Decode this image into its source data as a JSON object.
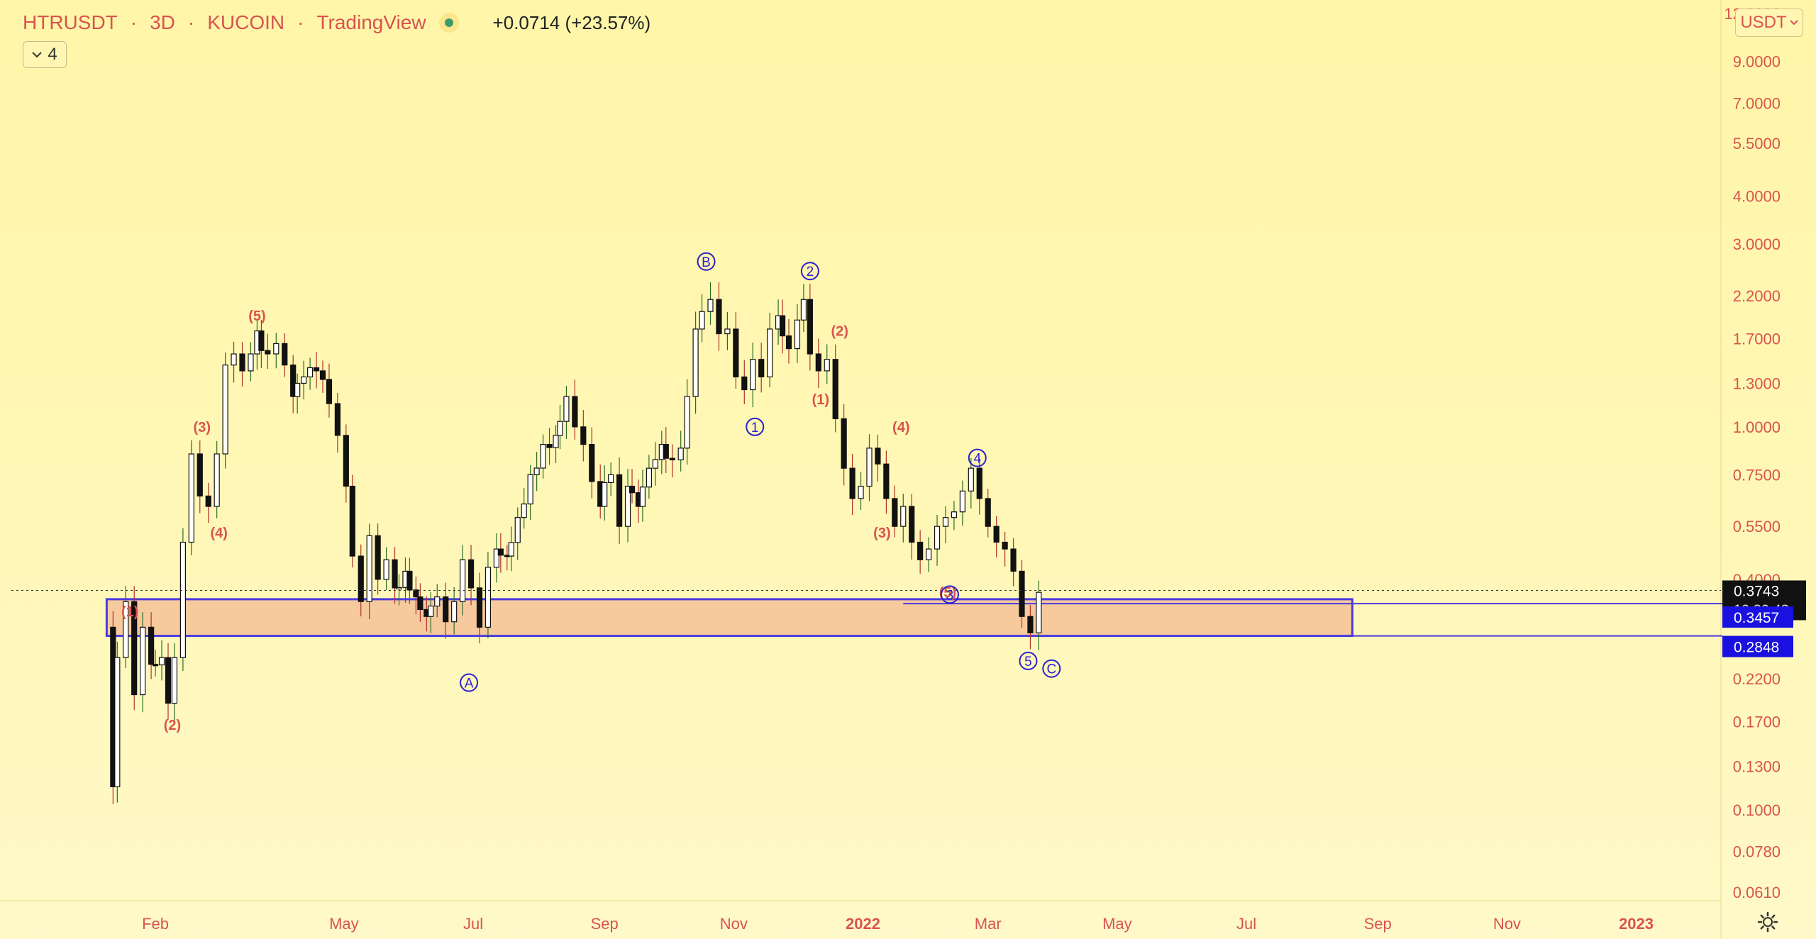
{
  "header": {
    "symbol": "HTRUSDT",
    "interval": "3D",
    "exchange": "KUCOIN",
    "source": "TradingView",
    "sep1": "·",
    "sep2": "·",
    "sep3": "·",
    "change": "+0.0714 (+23.57%)",
    "indicator_count": "4",
    "currency": "USDT"
  },
  "colors": {
    "accent": "#d9534f",
    "wave": "#2c1fd1",
    "zone_fill": "#f5c49a",
    "zone_stroke": "#4b3be0",
    "price_tag": "#111111",
    "level_tag": "#1a10e0"
  },
  "icons": {
    "legend_toggle": "chevron-down-icon",
    "currency_menu": "chevron-down-icon",
    "settings": "gear-icon"
  },
  "chart_data": {
    "type": "candlestick",
    "symbol": "HTRUSDT",
    "interval": "3D",
    "scale": "log",
    "y_ticks": [
      "12.0000",
      "9.0000",
      "7.0000",
      "5.5000",
      "4.0000",
      "3.0000",
      "2.2000",
      "1.7000",
      "1.3000",
      "1.0000",
      "0.7500",
      "0.5500",
      "0.4000",
      "0.2200",
      "0.1700",
      "0.1300",
      "0.1000",
      "0.0780",
      "0.0610"
    ],
    "x_ticks": [
      "Feb",
      "May",
      "Jul",
      "Sep",
      "Nov",
      "2022",
      "Mar",
      "May",
      "Jul",
      "Sep",
      "Nov",
      "2023"
    ],
    "x_tick_dates": [
      "2021-02-01",
      "2021-05-01",
      "2021-07-01",
      "2021-09-01",
      "2021-11-01",
      "2022-01-01",
      "2022-03-01",
      "2022-05-01",
      "2022-07-01",
      "2022-09-01",
      "2022-11-01",
      "2023-01-01"
    ],
    "ylim": [
      0.058,
      13.0
    ],
    "xlim": [
      "2020-11-25",
      "2023-02-10"
    ],
    "last_price": {
      "value": 0.3743,
      "label": "0.3743",
      "countdown": "19:30:43"
    },
    "levels": [
      {
        "value": 0.3457,
        "label": "0.3457"
      },
      {
        "value": 0.2848,
        "label": "0.2848"
      }
    ],
    "zone": {
      "x_start": "2021-01-09",
      "x_end": "2022-08-20",
      "y_top": 0.355,
      "y_bottom": 0.2848
    },
    "path": [
      [
        "2021-01-10",
        0.3
      ],
      [
        "2021-01-12",
        0.115
      ],
      [
        "2021-01-14",
        0.25
      ],
      [
        "2021-01-18",
        0.35
      ],
      [
        "2021-01-22",
        0.2
      ],
      [
        "2021-01-26",
        0.3
      ],
      [
        "2021-01-30",
        0.24
      ],
      [
        "2021-02-04",
        0.25
      ],
      [
        "2021-02-07",
        0.19
      ],
      [
        "2021-02-10",
        0.25
      ],
      [
        "2021-02-14",
        0.5
      ],
      [
        "2021-02-18",
        0.85
      ],
      [
        "2021-02-22",
        0.66
      ],
      [
        "2021-02-26",
        0.62
      ],
      [
        "2021-03-02",
        0.85
      ],
      [
        "2021-03-06",
        1.45
      ],
      [
        "2021-03-10",
        1.55
      ],
      [
        "2021-03-14",
        1.4
      ],
      [
        "2021-03-18",
        1.55
      ],
      [
        "2021-03-21",
        1.78
      ],
      [
        "2021-03-26",
        1.55
      ],
      [
        "2021-03-30",
        1.65
      ],
      [
        "2021-04-03",
        1.45
      ],
      [
        "2021-04-07",
        1.2
      ],
      [
        "2021-04-12",
        1.35
      ],
      [
        "2021-04-18",
        1.4
      ],
      [
        "2021-04-24",
        1.15
      ],
      [
        "2021-04-28",
        0.95
      ],
      [
        "2021-05-02",
        0.7
      ],
      [
        "2021-05-05",
        0.46
      ],
      [
        "2021-05-09",
        0.35
      ],
      [
        "2021-05-13",
        0.52
      ],
      [
        "2021-05-17",
        0.4
      ],
      [
        "2021-05-21",
        0.45
      ],
      [
        "2021-05-25",
        0.38
      ],
      [
        "2021-05-30",
        0.42
      ],
      [
        "2021-06-04",
        0.36
      ],
      [
        "2021-06-09",
        0.32
      ],
      [
        "2021-06-14",
        0.36
      ],
      [
        "2021-06-18",
        0.31
      ],
      [
        "2021-06-22",
        0.35
      ],
      [
        "2021-06-26",
        0.45
      ],
      [
        "2021-06-30",
        0.38
      ],
      [
        "2021-07-04",
        0.3
      ],
      [
        "2021-07-08",
        0.43
      ],
      [
        "2021-07-12",
        0.48
      ],
      [
        "2021-07-17",
        0.46
      ],
      [
        "2021-07-22",
        0.58
      ],
      [
        "2021-07-28",
        0.75
      ],
      [
        "2021-08-03",
        0.9
      ],
      [
        "2021-08-09",
        0.95
      ],
      [
        "2021-08-14",
        1.2
      ],
      [
        "2021-08-18",
        1.0
      ],
      [
        "2021-08-22",
        0.9
      ],
      [
        "2021-08-26",
        0.72
      ],
      [
        "2021-08-30",
        0.62
      ],
      [
        "2021-09-04",
        0.75
      ],
      [
        "2021-09-08",
        0.55
      ],
      [
        "2021-09-12",
        0.7
      ],
      [
        "2021-09-17",
        0.62
      ],
      [
        "2021-09-22",
        0.78
      ],
      [
        "2021-09-28",
        0.9
      ],
      [
        "2021-10-03",
        0.82
      ],
      [
        "2021-10-07",
        0.88
      ],
      [
        "2021-10-10",
        1.2
      ],
      [
        "2021-10-14",
        1.8
      ],
      [
        "2021-10-17",
        2.0
      ],
      [
        "2021-10-21",
        2.15
      ],
      [
        "2021-10-25",
        1.75
      ],
      [
        "2021-10-29",
        1.8
      ],
      [
        "2021-11-02",
        1.35
      ],
      [
        "2021-11-06",
        1.25
      ],
      [
        "2021-11-10",
        1.5
      ],
      [
        "2021-11-14",
        1.35
      ],
      [
        "2021-11-18",
        1.8
      ],
      [
        "2021-11-22",
        1.95
      ],
      [
        "2021-11-27",
        1.6
      ],
      [
        "2021-12-01",
        1.9
      ],
      [
        "2021-12-04",
        2.15
      ],
      [
        "2021-12-07",
        1.55
      ],
      [
        "2021-12-11",
        1.4
      ],
      [
        "2021-12-15",
        1.5
      ],
      [
        "2021-12-19",
        1.05
      ],
      [
        "2021-12-23",
        0.78
      ],
      [
        "2021-12-27",
        0.65
      ],
      [
        "2021-12-31",
        0.7
      ],
      [
        "2022-01-04",
        0.88
      ],
      [
        "2022-01-08",
        0.8
      ],
      [
        "2022-01-12",
        0.65
      ],
      [
        "2022-01-16",
        0.55
      ],
      [
        "2022-01-20",
        0.62
      ],
      [
        "2022-01-24",
        0.5
      ],
      [
        "2022-01-28",
        0.45
      ],
      [
        "2022-02-01",
        0.48
      ],
      [
        "2022-02-05",
        0.55
      ],
      [
        "2022-02-09",
        0.58
      ],
      [
        "2022-02-13",
        0.6
      ],
      [
        "2022-02-17",
        0.68
      ],
      [
        "2022-02-21",
        0.78
      ],
      [
        "2022-02-25",
        0.65
      ],
      [
        "2022-03-01",
        0.55
      ],
      [
        "2022-03-05",
        0.5
      ],
      [
        "2022-03-09",
        0.48
      ],
      [
        "2022-03-13",
        0.42
      ],
      [
        "2022-03-17",
        0.32
      ],
      [
        "2022-03-21",
        0.29
      ],
      [
        "2022-03-25",
        0.37
      ]
    ],
    "annotations": [
      {
        "text": "(1)",
        "kind": "minor",
        "x": "2021-01-20",
        "y": 0.33
      },
      {
        "text": "(2)",
        "kind": "minor",
        "x": "2021-02-09",
        "y": 0.167
      },
      {
        "text": "(3)",
        "kind": "minor",
        "x": "2021-02-23",
        "y": 1.0
      },
      {
        "text": "(4)",
        "kind": "minor",
        "x": "2021-03-03",
        "y": 0.53
      },
      {
        "text": "(5)",
        "kind": "minor",
        "x": "2021-03-21",
        "y": 1.95
      },
      {
        "text": "(1)",
        "kind": "minor",
        "x": "2021-12-12",
        "y": 1.18
      },
      {
        "text": "(2)",
        "kind": "minor",
        "x": "2021-12-21",
        "y": 1.78
      },
      {
        "text": "(3)",
        "kind": "minor",
        "x": "2022-01-10",
        "y": 0.53
      },
      {
        "text": "(4)",
        "kind": "minor",
        "x": "2022-01-19",
        "y": 1.0
      },
      {
        "text": "(5)",
        "kind": "minor",
        "x": "2022-02-10",
        "y": 0.37
      },
      {
        "text": "B",
        "kind": "circle",
        "x": "2021-10-19",
        "y": 2.7
      },
      {
        "text": "2",
        "kind": "circle",
        "x": "2021-12-07",
        "y": 2.55
      },
      {
        "text": "1",
        "kind": "circle",
        "x": "2021-11-11",
        "y": 1.0
      },
      {
        "text": "4",
        "kind": "circle",
        "x": "2022-02-24",
        "y": 0.83
      },
      {
        "text": "3",
        "kind": "circle",
        "x": "2022-02-11",
        "y": 0.365
      },
      {
        "text": "5",
        "kind": "circle",
        "x": "2022-03-20",
        "y": 0.245
      },
      {
        "text": "A",
        "kind": "circle",
        "x": "2021-06-29",
        "y": 0.215
      },
      {
        "text": "C",
        "kind": "circle",
        "x": "2022-03-31",
        "y": 0.234
      }
    ]
  }
}
